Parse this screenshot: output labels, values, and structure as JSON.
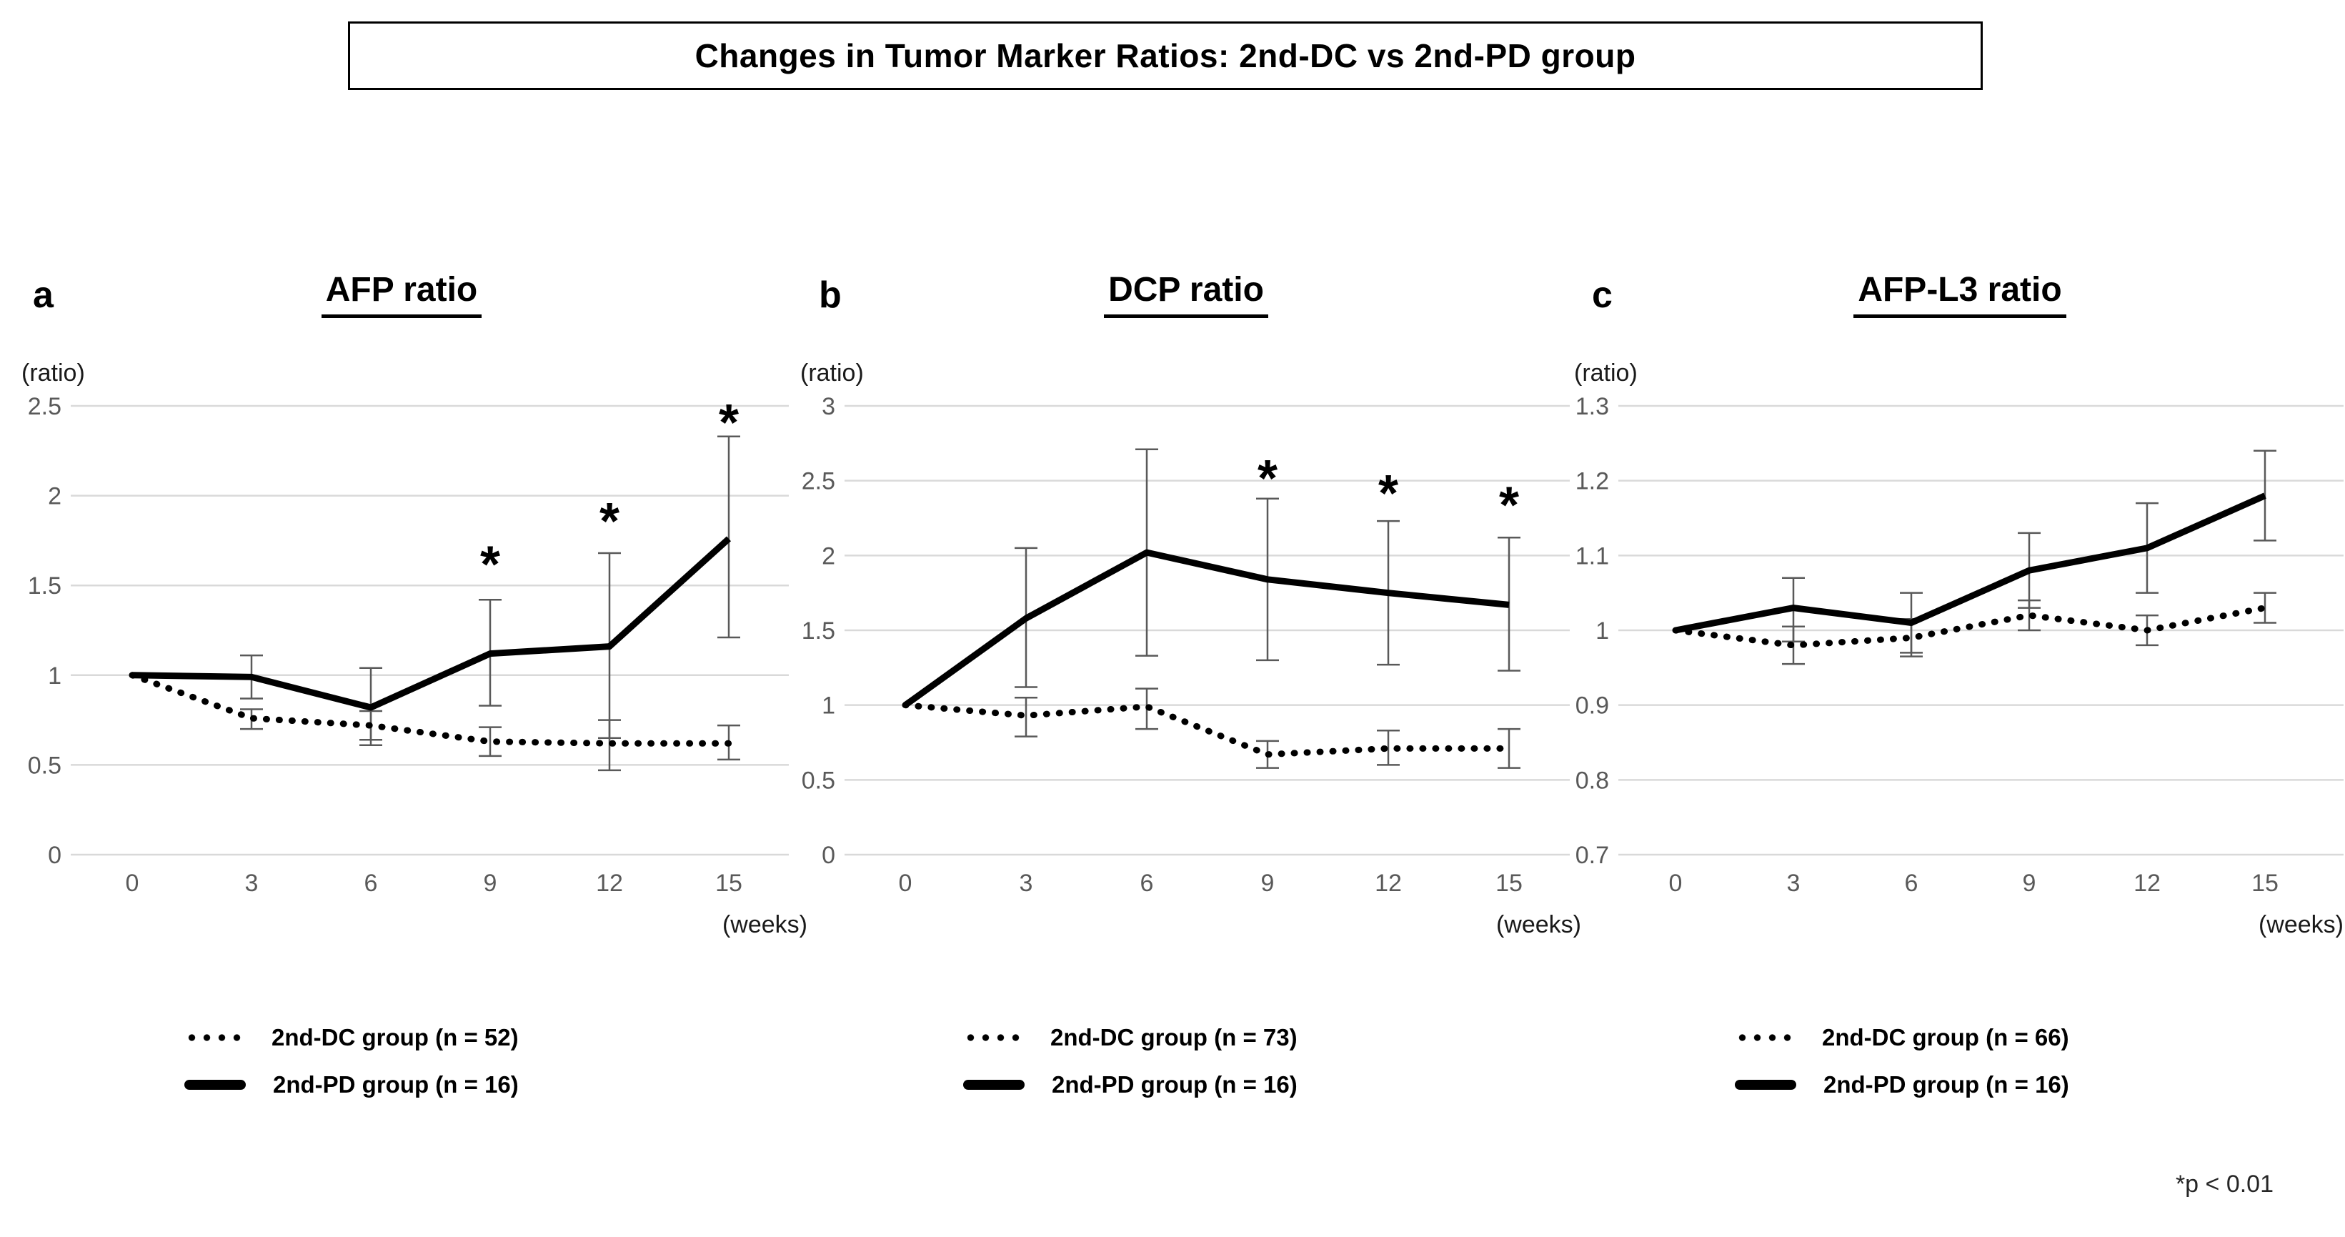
{
  "header": {
    "title": "Changes in Tumor Marker Ratios: 2nd-DC vs 2nd-PD group"
  },
  "footnote": "*p < 0.01",
  "colors": {
    "line": "#000000",
    "grid": "#d9d9d9",
    "error_bar": "#595959",
    "tick_label": "#595959",
    "axis_caption": "#1a1a1a"
  },
  "chart_data": [
    {
      "type": "line",
      "panel_letter": "a",
      "title": "AFP ratio",
      "y_axis_label": "(ratio)",
      "x_axis_label": "(weeks)",
      "x_categories": [
        0,
        3,
        6,
        9,
        12,
        15
      ],
      "ylim": [
        0,
        2.5
      ],
      "y_ticks": [
        "0",
        "0.5",
        "1",
        "1.5",
        "2",
        "2.5"
      ],
      "grid": true,
      "legend_position": "below",
      "series": [
        {
          "name": "2nd-DC group (n = 52)",
          "line_style": "dotted",
          "values": [
            1.0,
            0.76,
            0.72,
            0.63,
            0.62,
            0.62
          ],
          "err_low": [
            null,
            0.7,
            0.64,
            0.55,
            0.47,
            0.53
          ],
          "err_high": [
            null,
            0.81,
            0.8,
            0.71,
            0.75,
            0.72
          ]
        },
        {
          "name": "2nd-PD group (n = 16)",
          "line_style": "solid",
          "values": [
            1.0,
            0.99,
            0.82,
            1.12,
            1.16,
            1.76
          ],
          "err_low": [
            null,
            0.87,
            0.61,
            0.83,
            0.65,
            1.21
          ],
          "err_high": [
            null,
            1.11,
            1.04,
            1.42,
            1.68,
            2.33
          ]
        }
      ],
      "significance_asterisks": [
        {
          "week": 9,
          "y": 1.67
        },
        {
          "week": 12,
          "y": 1.91
        },
        {
          "week": 15,
          "y": 2.46
        }
      ]
    },
    {
      "type": "line",
      "panel_letter": "b",
      "title": "DCP ratio",
      "y_axis_label": "(ratio)",
      "x_axis_label": "(weeks)",
      "x_categories": [
        0,
        3,
        6,
        9,
        12,
        15
      ],
      "ylim": [
        0,
        3
      ],
      "y_ticks": [
        "0",
        "0.5",
        "1",
        "1.5",
        "2",
        "2.5",
        "3"
      ],
      "grid": true,
      "legend_position": "below",
      "series": [
        {
          "name": "2nd-DC group (n = 73)",
          "line_style": "dotted",
          "values": [
            1.0,
            0.93,
            0.99,
            0.67,
            0.71,
            0.71
          ],
          "err_low": [
            null,
            0.79,
            0.84,
            0.58,
            0.6,
            0.58
          ],
          "err_high": [
            null,
            1.05,
            1.11,
            0.76,
            0.83,
            0.84
          ]
        },
        {
          "name": "2nd-PD group (n = 16)",
          "line_style": "solid",
          "values": [
            1.0,
            1.58,
            2.02,
            1.84,
            1.75,
            1.67
          ],
          "err_low": [
            null,
            1.12,
            1.33,
            1.3,
            1.27,
            1.23
          ],
          "err_high": [
            null,
            2.05,
            2.71,
            2.38,
            2.23,
            2.12
          ]
        }
      ],
      "significance_asterisks": [
        {
          "week": 9,
          "y": 2.58
        },
        {
          "week": 12,
          "y": 2.48
        },
        {
          "week": 15,
          "y": 2.4
        }
      ]
    },
    {
      "type": "line",
      "panel_letter": "c",
      "title": "AFP-L3 ratio",
      "y_axis_label": "(ratio)",
      "x_axis_label": "(weeks)",
      "x_categories": [
        0,
        3,
        6,
        9,
        12,
        15
      ],
      "ylim": [
        0.7,
        1.3
      ],
      "y_ticks": [
        "0.7",
        "0.8",
        "0.9",
        "1",
        "1.1",
        "1.2",
        "1.3"
      ],
      "grid": true,
      "legend_position": "below",
      "series": [
        {
          "name": "2nd-DC group (n = 66)",
          "line_style": "dotted",
          "values": [
            1.0,
            0.98,
            0.99,
            1.02,
            1.0,
            1.03
          ],
          "err_low": [
            null,
            0.955,
            0.965,
            1.0,
            0.98,
            1.01
          ],
          "err_high": [
            null,
            1.005,
            1.015,
            1.04,
            1.02,
            1.05
          ]
        },
        {
          "name": "2nd-PD group (n = 16)",
          "line_style": "solid",
          "values": [
            1.0,
            1.03,
            1.01,
            1.08,
            1.11,
            1.18
          ],
          "err_low": [
            null,
            0.985,
            0.97,
            1.03,
            1.05,
            1.12
          ],
          "err_high": [
            null,
            1.07,
            1.05,
            1.13,
            1.17,
            1.24
          ]
        }
      ],
      "significance_asterisks": []
    }
  ]
}
